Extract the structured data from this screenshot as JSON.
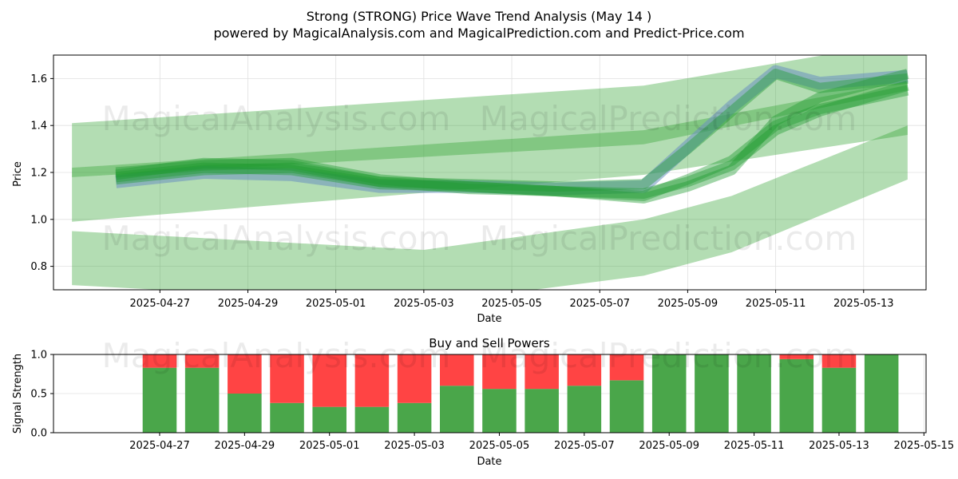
{
  "header": {
    "title": "Strong (STRONG) Price Wave Trend Analysis (May 14 )",
    "subtitle": "powered by MagicalAnalysis.com and MagicalPrediction.com and Predict-Price.com"
  },
  "watermarks": [
    "MagicalAnalysis.com",
    "MagicalPrediction.com"
  ],
  "colors": {
    "band": "#2ca02c",
    "wave": "#1f9a2f",
    "blue_wave": "#6a8fc0",
    "buy": "#4aa64a",
    "sell": "#ff4444",
    "grid": "#e0e0e0"
  },
  "chart_data": [
    {
      "type": "area",
      "xlabel": "Date",
      "ylabel": "Price",
      "ylim": [
        0.7,
        1.7
      ],
      "xlim": [
        "2025-04-25",
        "2025-05-14"
      ],
      "yticks": [
        "0.8",
        "1.0",
        "1.2",
        "1.4",
        "1.6"
      ],
      "xticks": [
        "2025-04-27",
        "2025-04-29",
        "2025-05-01",
        "2025-05-03",
        "2025-05-05",
        "2025-05-07",
        "2025-05-09",
        "2025-05-11",
        "2025-05-13"
      ],
      "grid": true,
      "bands": [
        {
          "x": [
            "2025-04-25",
            "2025-05-08",
            "2025-05-14"
          ],
          "lower": [
            0.99,
            1.19,
            1.36
          ],
          "upper": [
            1.41,
            1.57,
            1.76
          ]
        },
        {
          "x": [
            "2025-04-25",
            "2025-05-03",
            "2025-05-08",
            "2025-05-10",
            "2025-05-14"
          ],
          "lower": [
            0.72,
            0.64,
            0.76,
            0.86,
            1.17
          ],
          "upper": [
            0.95,
            0.87,
            1.0,
            1.1,
            1.4
          ]
        },
        {
          "x": [
            "2025-04-25",
            "2025-05-08",
            "2025-05-14"
          ],
          "lower": [
            1.18,
            1.32,
            1.55
          ],
          "upper": [
            1.22,
            1.38,
            1.59
          ]
        }
      ],
      "series": [
        {
          "x": [
            "2025-04-26",
            "2025-04-28",
            "2025-04-30",
            "2025-05-02",
            "2025-05-04",
            "2025-05-06",
            "2025-05-08",
            "2025-05-09",
            "2025-05-11",
            "2025-05-12",
            "2025-05-14"
          ],
          "values": [
            1.17,
            1.21,
            1.22,
            1.16,
            1.15,
            1.14,
            1.15,
            1.3,
            1.62,
            1.56,
            1.6
          ]
        },
        {
          "x": [
            "2025-04-26",
            "2025-04-28",
            "2025-04-30",
            "2025-05-02",
            "2025-05-04",
            "2025-05-06",
            "2025-05-08",
            "2025-05-09",
            "2025-05-10",
            "2025-05-11",
            "2025-05-12",
            "2025-05-14"
          ],
          "values": [
            1.19,
            1.24,
            1.23,
            1.16,
            1.13,
            1.12,
            1.11,
            1.16,
            1.23,
            1.38,
            1.46,
            1.57
          ]
        },
        {
          "x": [
            "2025-04-26",
            "2025-04-28",
            "2025-04-30",
            "2025-05-02",
            "2025-05-04",
            "2025-05-06",
            "2025-05-08",
            "2025-05-09",
            "2025-05-10",
            "2025-05-11",
            "2025-05-12",
            "2025-05-14"
          ],
          "values": [
            1.2,
            1.23,
            1.24,
            1.17,
            1.14,
            1.12,
            1.1,
            1.17,
            1.25,
            1.4,
            1.47,
            1.55
          ]
        },
        {
          "x": [
            "2025-04-26",
            "2025-04-28",
            "2025-04-30",
            "2025-05-02",
            "2025-05-04",
            "2025-05-06",
            "2025-05-08",
            "2025-05-09",
            "2025-05-10",
            "2025-05-11",
            "2025-05-12",
            "2025-05-14"
          ],
          "values": [
            1.18,
            1.22,
            1.21,
            1.15,
            1.14,
            1.12,
            1.09,
            1.14,
            1.21,
            1.42,
            1.52,
            1.62
          ]
        }
      ],
      "blue_series": [
        {
          "x": [
            "2025-04-26",
            "2025-04-28",
            "2025-04-30",
            "2025-05-02",
            "2025-05-04",
            "2025-05-06",
            "2025-05-08",
            "2025-05-09",
            "2025-05-10",
            "2025-05-11",
            "2025-05-12",
            "2025-05-14"
          ],
          "values": [
            1.16,
            1.2,
            1.19,
            1.14,
            1.14,
            1.13,
            1.14,
            1.31,
            1.48,
            1.63,
            1.58,
            1.61
          ]
        }
      ]
    },
    {
      "type": "bar",
      "title": "Buy and Sell Powers",
      "xlabel": "Date",
      "ylabel": "Signal Strength",
      "ylim": [
        0.0,
        1.0
      ],
      "yticks": [
        "0.0",
        "0.5",
        "1.0"
      ],
      "xlim": [
        "2025-04-25",
        "2025-05-15"
      ],
      "xticks": [
        "2025-04-27",
        "2025-04-29",
        "2025-05-01",
        "2025-05-03",
        "2025-05-05",
        "2025-05-07",
        "2025-05-09",
        "2025-05-11",
        "2025-05-13",
        "2025-05-15"
      ],
      "categories": [
        "2025-04-27",
        "2025-04-28",
        "2025-04-29",
        "2025-04-30",
        "2025-05-01",
        "2025-05-02",
        "2025-05-03",
        "2025-05-04",
        "2025-05-05",
        "2025-05-06",
        "2025-05-07",
        "2025-05-08",
        "2025-05-09",
        "2025-05-10",
        "2025-05-11",
        "2025-05-12",
        "2025-05-13",
        "2025-05-14"
      ],
      "series": [
        {
          "values": [
            0.83,
            0.83,
            0.5,
            0.38,
            0.33,
            0.33,
            0.38,
            0.6,
            0.56,
            0.56,
            0.6,
            0.67,
            1.0,
            1.0,
            1.0,
            0.94,
            0.83,
            1.0
          ]
        },
        {
          "values": [
            0.17,
            0.17,
            0.5,
            0.62,
            0.67,
            0.67,
            0.62,
            0.4,
            0.44,
            0.44,
            0.4,
            0.33,
            0.0,
            0.0,
            0.0,
            0.06,
            0.17,
            0.0
          ]
        }
      ],
      "grid": true
    }
  ]
}
